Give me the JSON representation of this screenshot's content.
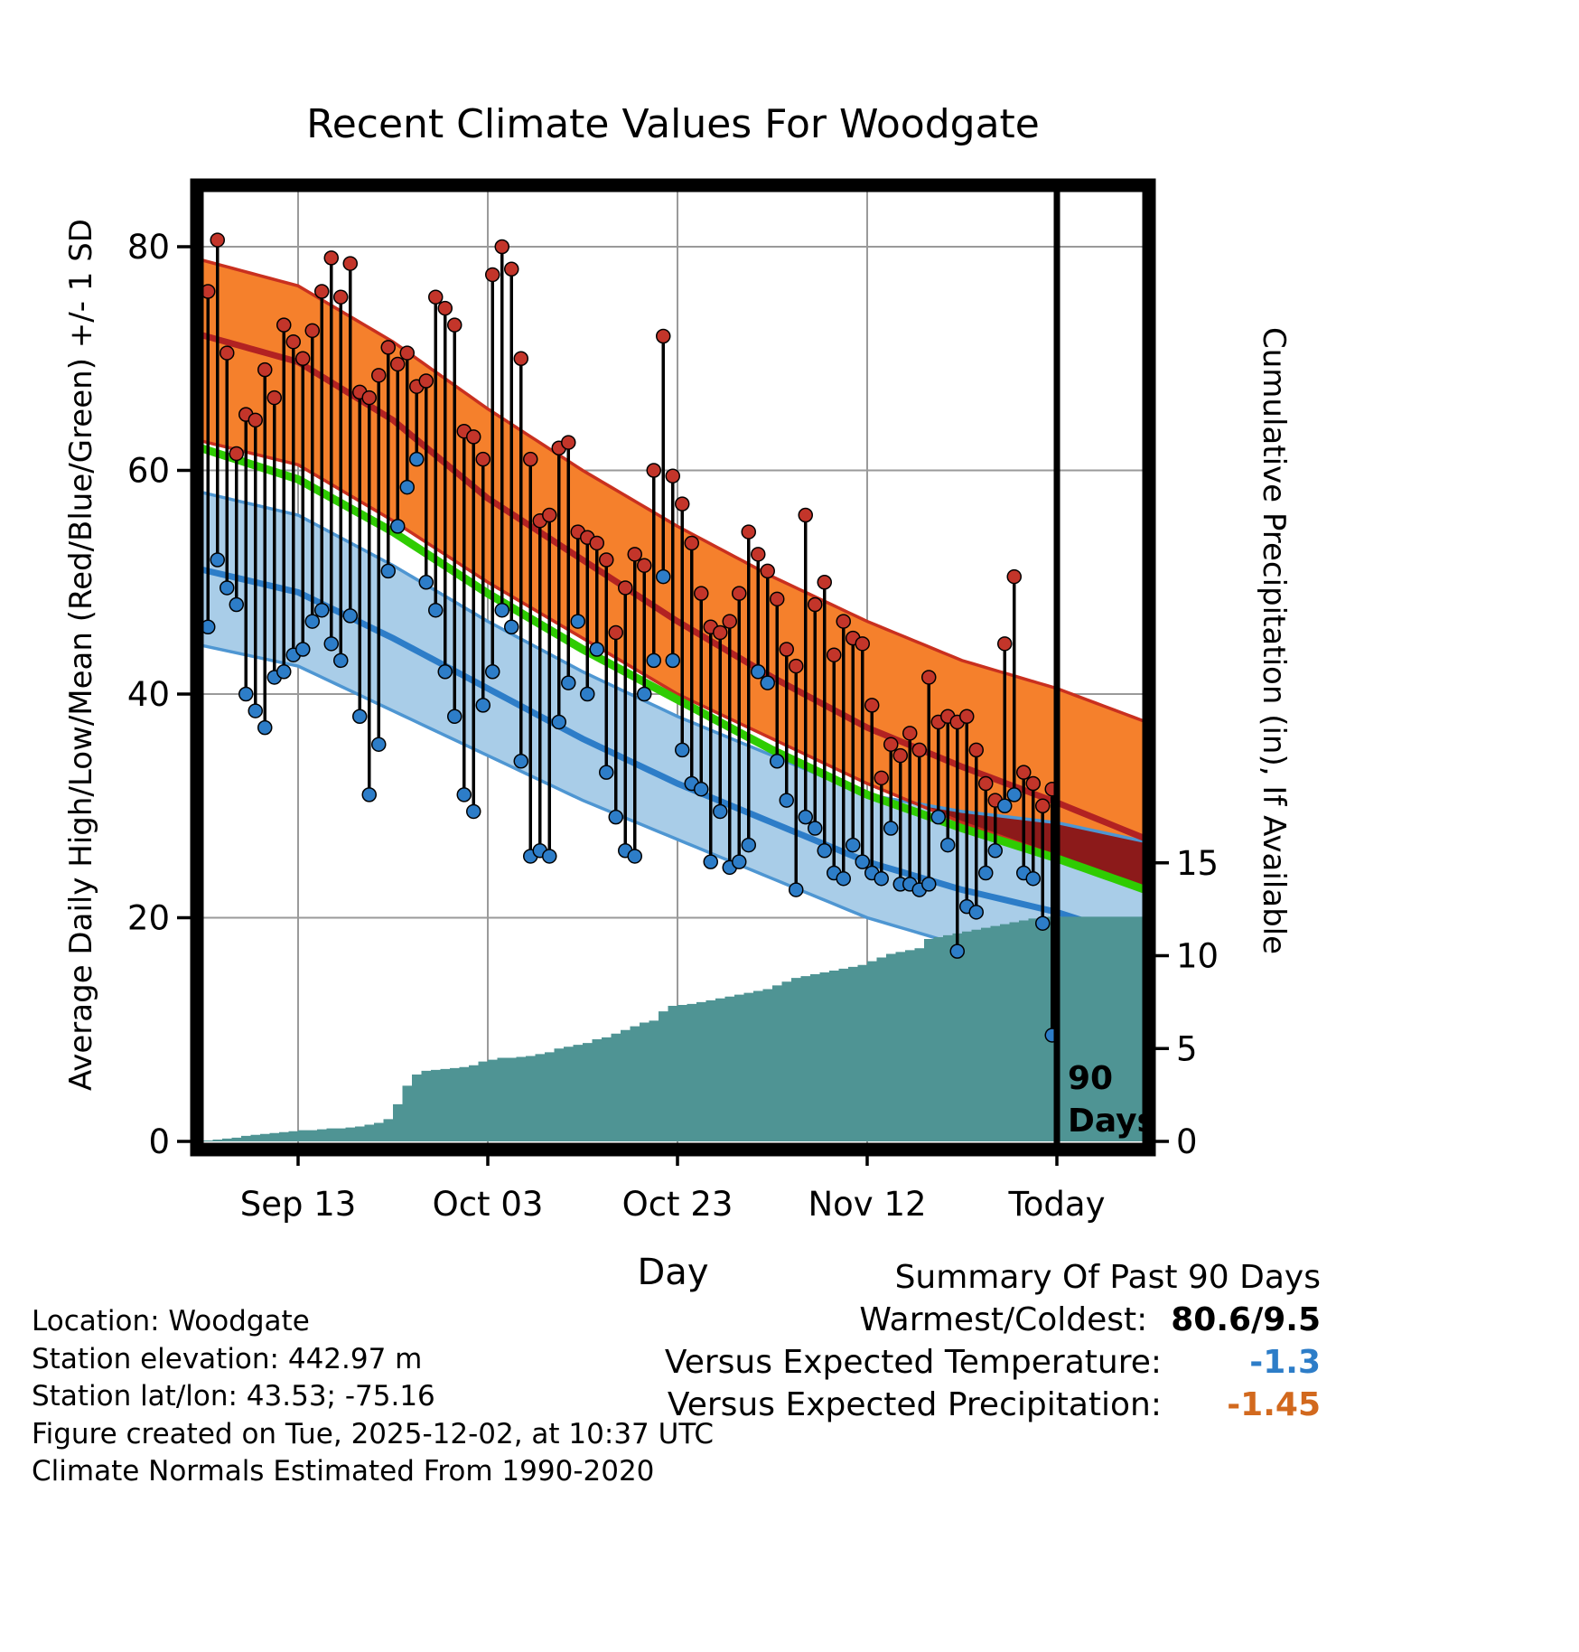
{
  "title": "Recent Climate Values For Woodgate",
  "axes": {
    "left_label": "Average Daily High/Low/Mean (Red/Blue/Green) +/- 1 SD",
    "right_label": "Cumulative Precipitation (in), If Available",
    "x_label": "Day"
  },
  "footer": {
    "lines": [
      "Location: Woodgate",
      "Station elevation: 442.97 m",
      "Station lat/lon: 43.53; -75.16",
      "Figure created on Tue, 2025-12-02, at 10:37 UTC",
      "Climate Normals Estimated From 1990-2020"
    ]
  },
  "summary": {
    "title": "Summary Of Past 90 Days",
    "rows": [
      {
        "label": "Warmest/Coldest:",
        "value": "80.6/9.5",
        "color": "#000000"
      },
      {
        "label": "Versus Expected Temperature:",
        "value": "-1.3",
        "color": "#2D7DC8"
      },
      {
        "label": "Versus Expected Precipitation:",
        "value": "-1.45",
        "color": "#D2691E"
      }
    ]
  },
  "colors": {
    "high_band": "#F5802C",
    "high_edge": "#C9301F",
    "high_line": "#B22222",
    "high_dot": "#C3352A",
    "low_band": "#A9CDE8",
    "low_edge": "#4E96D2",
    "low_line": "#2D7DC8",
    "low_dot": "#2D7DC8",
    "mean_line": "#2FCC02",
    "overlap": "#8C1A1A",
    "precip": "#4F9494",
    "grid": "#9A9A9A",
    "bar": "#000000"
  },
  "chart_data": {
    "type": "line",
    "title": "Recent Climate Values For Woodgate",
    "xlabel": "Day",
    "ylabel_left": "Average Daily High/Low/Mean (Red/Blue/Green) +/- 1 SD",
    "ylabel_right": "Cumulative Precipitation (in), If Available",
    "x_unit_note": "day index, 0 = 90 days ago, 90 = Today",
    "xlim": [
      -1,
      101
    ],
    "ylim_left": [
      -0.7,
      85.5
    ],
    "x_ticks": [
      {
        "day": 10,
        "label": "Sep 13"
      },
      {
        "day": 30,
        "label": "Oct 03"
      },
      {
        "day": 50,
        "label": "Oct 23"
      },
      {
        "day": 70,
        "label": "Nov 12"
      },
      {
        "day": 90,
        "label": "Today"
      }
    ],
    "left_ticks": [
      0,
      20,
      40,
      60,
      80
    ],
    "right_ticks": [
      0,
      5,
      10,
      15
    ],
    "annotation": {
      "line1": "90",
      "line2": "Days",
      "day": 90
    },
    "normals": {
      "days": [
        -1,
        10,
        20,
        30,
        40,
        50,
        60,
        70,
        80,
        90,
        101
      ],
      "high_upper": [
        79,
        76.5,
        71.5,
        65.5,
        60,
        55,
        50.5,
        46.5,
        43,
        40.5,
        37
      ],
      "high_mean": [
        72.3,
        69.7,
        64.5,
        57.5,
        52,
        46.5,
        41.5,
        37,
        33.5,
        30.3,
        26.5
      ],
      "high_lower": [
        62.8,
        60.5,
        55.5,
        50,
        45,
        40,
        36,
        32,
        28.5,
        25.5,
        22
      ],
      "mean": [
        62.2,
        59.2,
        54.5,
        49,
        44,
        39.5,
        35,
        31,
        28,
        25.3,
        22
      ],
      "low_upper": [
        58.2,
        56,
        51.5,
        46.5,
        42,
        38,
        34.5,
        31,
        29.5,
        28.5,
        26.5
      ],
      "low_mean": [
        51.3,
        49.1,
        45,
        40.5,
        36,
        32,
        28.5,
        25,
        22.5,
        20.5,
        17.5
      ],
      "low_lower": [
        44.5,
        42.5,
        38.5,
        34.5,
        30.5,
        27,
        23.5,
        20,
        17.5,
        16,
        14
      ]
    },
    "daily": {
      "highs": [
        76,
        80.6,
        70.5,
        61.5,
        65,
        64.5,
        69,
        66.5,
        73,
        71.5,
        70,
        72.5,
        76,
        79,
        75.5,
        78.5,
        67,
        66.5,
        68.5,
        71,
        69.5,
        70.5,
        67.5,
        68,
        75.5,
        74.5,
        73,
        63.5,
        63,
        61,
        77.5,
        80,
        78,
        70,
        61,
        55.5,
        56,
        62,
        62.5,
        54.5,
        54,
        53.5,
        52,
        45.5,
        49.5,
        52.5,
        51.5,
        60,
        72,
        59.5,
        57,
        53.5,
        49,
        46,
        45.5,
        46.5,
        49,
        54.5,
        52.5,
        51,
        48.5,
        44,
        42.5,
        56,
        48,
        50,
        43.5,
        46.5,
        45,
        44.5,
        39,
        32.5,
        35.5,
        34.5,
        36.5,
        35,
        41.5,
        37.5,
        38,
        37.5,
        38,
        35,
        32,
        30.5,
        44.5,
        50.5,
        33,
        32,
        30,
        31.5
      ],
      "lows": [
        46,
        52,
        49.5,
        48,
        40,
        38.5,
        37,
        41.5,
        42,
        43.5,
        44,
        46.5,
        47.5,
        44.5,
        43,
        47,
        38,
        31,
        35.5,
        51,
        55,
        58.5,
        61,
        50,
        47.5,
        42,
        38,
        31,
        29.5,
        39,
        42,
        47.5,
        46,
        34,
        25.5,
        26,
        25.5,
        37.5,
        41,
        46.5,
        40,
        44,
        33,
        29,
        26,
        25.5,
        40,
        43,
        50.5,
        43,
        35,
        32,
        31.5,
        25,
        29.5,
        24.5,
        25,
        26.5,
        42,
        41,
        34,
        30.5,
        22.5,
        29,
        28,
        26,
        24,
        23.5,
        26.5,
        25,
        24,
        23.5,
        28,
        23,
        23,
        22.5,
        23,
        29,
        26.5,
        17,
        21,
        20.5,
        24,
        26,
        30,
        31,
        24,
        23.5,
        19.5,
        9.5
      ]
    },
    "precip_cumulative_in": [
      0.05,
      0.1,
      0.15,
      0.2,
      0.3,
      0.35,
      0.4,
      0.45,
      0.5,
      0.55,
      0.6,
      0.6,
      0.65,
      0.7,
      0.7,
      0.75,
      0.8,
      0.9,
      1.0,
      1.2,
      2.0,
      3.0,
      3.6,
      3.8,
      3.85,
      3.9,
      3.95,
      4.0,
      4.1,
      4.3,
      4.4,
      4.5,
      4.5,
      4.55,
      4.6,
      4.7,
      4.8,
      5.0,
      5.1,
      5.2,
      5.3,
      5.5,
      5.6,
      5.8,
      6.0,
      6.2,
      6.4,
      6.5,
      7.0,
      7.3,
      7.35,
      7.4,
      7.5,
      7.6,
      7.7,
      7.8,
      7.9,
      8.0,
      8.1,
      8.2,
      8.4,
      8.6,
      8.8,
      8.9,
      9.0,
      9.1,
      9.2,
      9.3,
      9.4,
      9.5,
      9.7,
      9.9,
      10.1,
      10.2,
      10.3,
      10.4,
      10.9,
      11.0,
      11.1,
      11.2,
      11.3,
      11.4,
      11.5,
      11.6,
      11.7,
      11.8,
      11.9,
      12.0,
      12.05,
      12.1
    ]
  }
}
